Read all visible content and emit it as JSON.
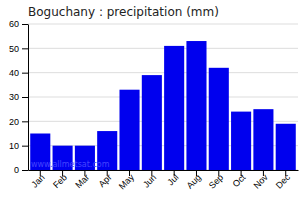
{
  "chart_data": {
    "type": "bar",
    "title": "Boguchany : precipitation (mm)",
    "categories": [
      "Jan",
      "Feb",
      "Mar",
      "Apr",
      "May",
      "Jun",
      "Jul",
      "Aug",
      "Sep",
      "Oct",
      "Nov",
      "Dec"
    ],
    "values": [
      15,
      10,
      10,
      16,
      33,
      39,
      51,
      53,
      42,
      24,
      25,
      19
    ],
    "color": "#0000EE",
    "ylim": [
      0,
      60
    ],
    "yticks": [
      0,
      10,
      20,
      30,
      40,
      50,
      60
    ],
    "grid": true,
    "annotations": [
      "www.allmetsat.com"
    ]
  }
}
